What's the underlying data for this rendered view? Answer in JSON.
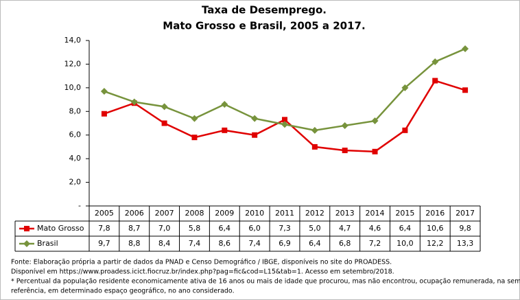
{
  "chart_data": {
    "type": "line",
    "title": [
      "Taxa de Desemprego.",
      "Mato Grosso e Brasil, 2005 a 2017."
    ],
    "categories": [
      "2005",
      "2006",
      "2007",
      "2008",
      "2009",
      "2010",
      "2011",
      "2012",
      "2013",
      "2014",
      "2015",
      "2016",
      "2017"
    ],
    "series": [
      {
        "name": "Mato Grosso",
        "color": "#e00000",
        "marker": "square",
        "values": [
          7.8,
          8.7,
          7.0,
          5.8,
          6.4,
          6.0,
          7.3,
          5.0,
          4.7,
          4.6,
          6.4,
          10.6,
          9.8
        ],
        "value_labels": [
          "7,8",
          "8,7",
          "7,0",
          "5,8",
          "6,4",
          "6,0",
          "7,3",
          "5,0",
          "4,7",
          "4,6",
          "6,4",
          "10,6",
          "9,8"
        ]
      },
      {
        "name": "Brasil",
        "color": "#77933c",
        "marker": "diamond",
        "values": [
          9.7,
          8.8,
          8.4,
          7.4,
          8.6,
          7.4,
          6.9,
          6.4,
          6.8,
          7.2,
          10.0,
          12.2,
          13.3
        ],
        "value_labels": [
          "9,7",
          "8,8",
          "8,4",
          "7,4",
          "8,6",
          "7,4",
          "6,9",
          "6,4",
          "6,8",
          "7,2",
          "10,0",
          "12,2",
          "13,3"
        ]
      }
    ],
    "ylim": [
      0,
      14
    ],
    "yticks": [
      {
        "value": 0,
        "label": "-"
      },
      {
        "value": 2,
        "label": "2,0"
      },
      {
        "value": 4,
        "label": "4,0"
      },
      {
        "value": 6,
        "label": "6,0"
      },
      {
        "value": 8,
        "label": "8,0"
      },
      {
        "value": 10,
        "label": "10,0"
      },
      {
        "value": 12,
        "label": "12,0"
      },
      {
        "value": 14,
        "label": "14,0"
      }
    ],
    "grid": false,
    "notes": [
      "Fonte: Elaboração própria a partir de dados da PNAD e Censo Demográfico / IBGE, disponíveis no site do PROADESS.",
      "Disponível em https://www.proadess.icict.fiocruz.br/index.php?pag=fic&cod=L15&tab=1. Acesso em  setembro/2018.",
      "* Percentual da população residente economicamente ativa de 16 anos ou mais de idade que procurou, mas não encontrou, ocupação remunerada, na semana de",
      "referência, em determinado espaço geográfico, no ano considerado."
    ]
  }
}
